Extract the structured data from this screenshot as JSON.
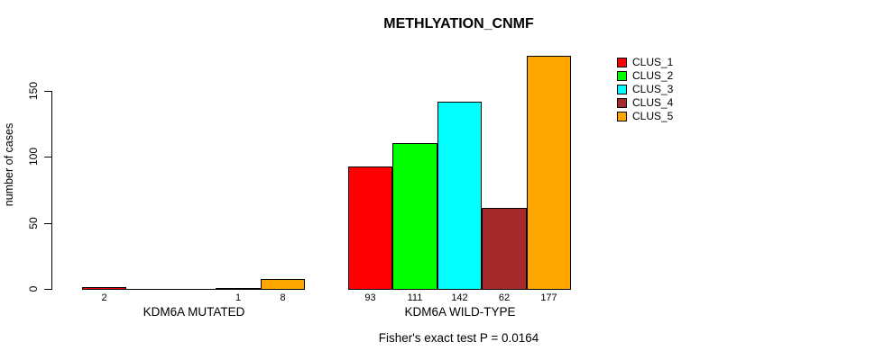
{
  "chart_data": {
    "type": "bar",
    "title": "METHLYATION_CNMF",
    "ylabel": "number of cases",
    "xlabel": "",
    "categories": [
      "KDM6A MUTATED",
      "KDM6A WILD-TYPE"
    ],
    "series": [
      {
        "name": "CLUS_1",
        "color": "#FF0000",
        "values": [
          2,
          93
        ]
      },
      {
        "name": "CLUS_2",
        "color": "#00FF00",
        "values": [
          0,
          111
        ]
      },
      {
        "name": "CLUS_3",
        "color": "#00FFFF",
        "values": [
          0,
          142
        ]
      },
      {
        "name": "CLUS_4",
        "color": "#A52A2A",
        "values": [
          1,
          62
        ]
      },
      {
        "name": "CLUS_5",
        "color": "#FFA500",
        "values": [
          8,
          177
        ]
      }
    ],
    "bar_value_labels": [
      [
        "2",
        "",
        "",
        "1",
        "8"
      ],
      [
        "93",
        "111",
        "142",
        "62",
        "177"
      ]
    ],
    "yticks": [
      0,
      50,
      100,
      150
    ],
    "ylim": [
      0,
      177
    ],
    "grid": false,
    "legend": {
      "position": "right",
      "entries": [
        "CLUS_1",
        "CLUS_2",
        "CLUS_3",
        "CLUS_4",
        "CLUS_5"
      ]
    },
    "annotation": "Fisher's exact test P = 0.0164",
    "background": "#FFFFFF",
    "axis_color": "#000000"
  }
}
